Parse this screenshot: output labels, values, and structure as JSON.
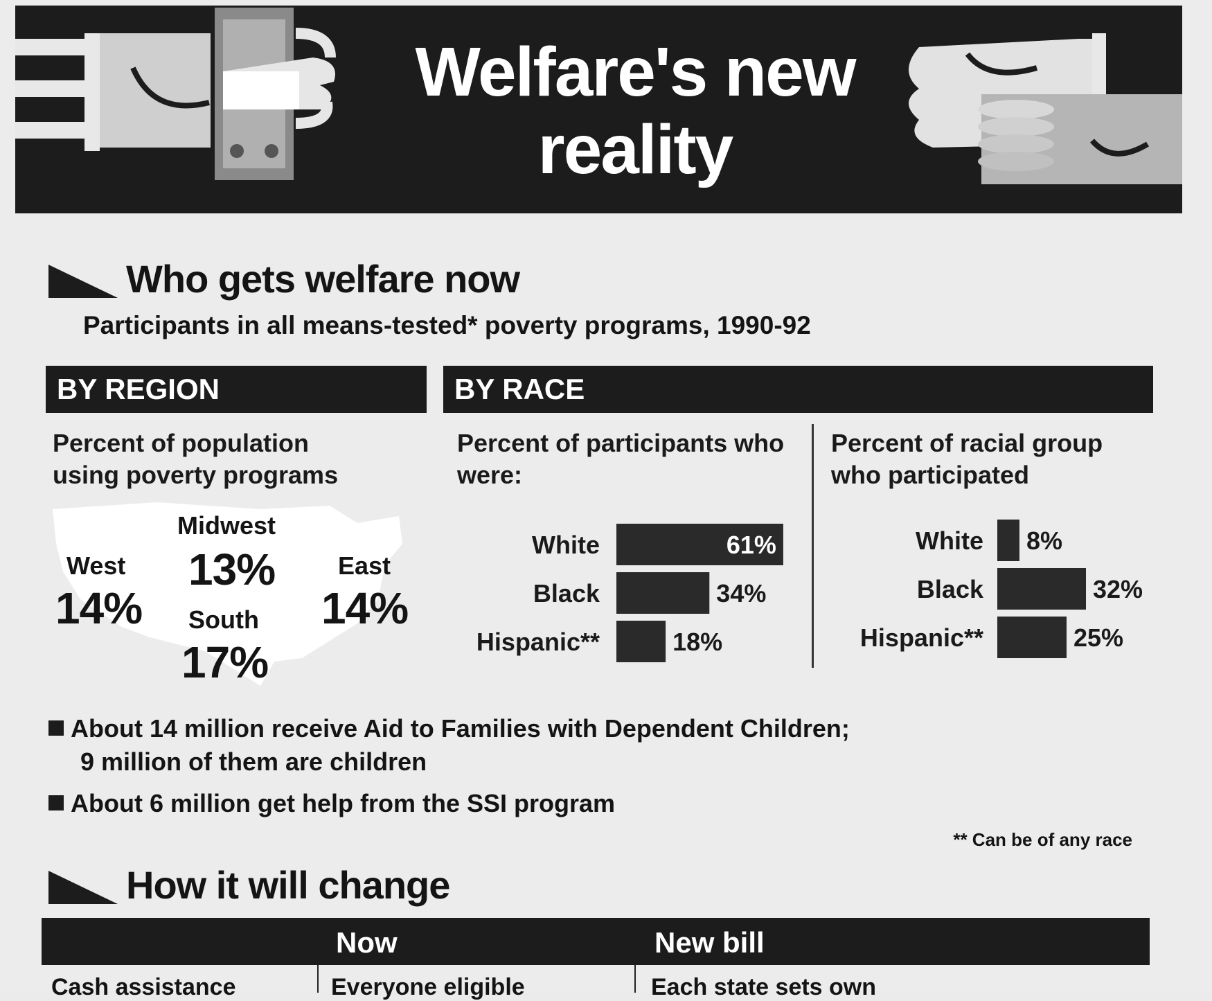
{
  "title": "Welfare's new reality",
  "section1": {
    "heading": "Who gets welfare now",
    "subtitle": "Participants in  all means-tested* poverty programs, 1990-92"
  },
  "by_region": {
    "header": "BY REGION",
    "label": "Percent of population using poverty programs",
    "regions": [
      {
        "name": "West",
        "value": "14%"
      },
      {
        "name": "Midwest",
        "value": "13%"
      },
      {
        "name": "South",
        "value": "17%"
      },
      {
        "name": "East",
        "value": "14%"
      }
    ]
  },
  "by_race": {
    "header": "BY RACE",
    "left_label": "Percent of participants who were:",
    "right_label": "Percent of racial group who participated"
  },
  "chart_data": [
    {
      "type": "bar",
      "orientation": "horizontal",
      "title": "Percent of participants who were:",
      "categories": [
        "White",
        "Black",
        "Hispanic**"
      ],
      "values": [
        61,
        34,
        18
      ],
      "value_labels": [
        "61%",
        "34%",
        "18%"
      ]
    },
    {
      "type": "bar",
      "orientation": "horizontal",
      "title": "Percent of racial group who participated",
      "categories": [
        "White",
        "Black",
        "Hispanic**"
      ],
      "values": [
        8,
        32,
        25
      ],
      "value_labels": [
        "8%",
        "32%",
        "25%"
      ]
    }
  ],
  "bullets": [
    {
      "line1": "About 14 million receive Aid to Families with Dependent Children;",
      "line2": "9 million of them are children"
    },
    {
      "line1": "About 6 million get help from the SSI program"
    }
  ],
  "footnote": "** Can be of any race",
  "section2": {
    "heading": "How it will change"
  },
  "change_table": {
    "columns": [
      "",
      "Now",
      "New bill"
    ],
    "rows": [
      [
        "Cash assistance",
        "Everyone eligible",
        "Each state sets own"
      ]
    ]
  },
  "colors": {
    "banner": "#1c1c1c",
    "bar": "#2a2a2a",
    "paper": "#ececec"
  }
}
